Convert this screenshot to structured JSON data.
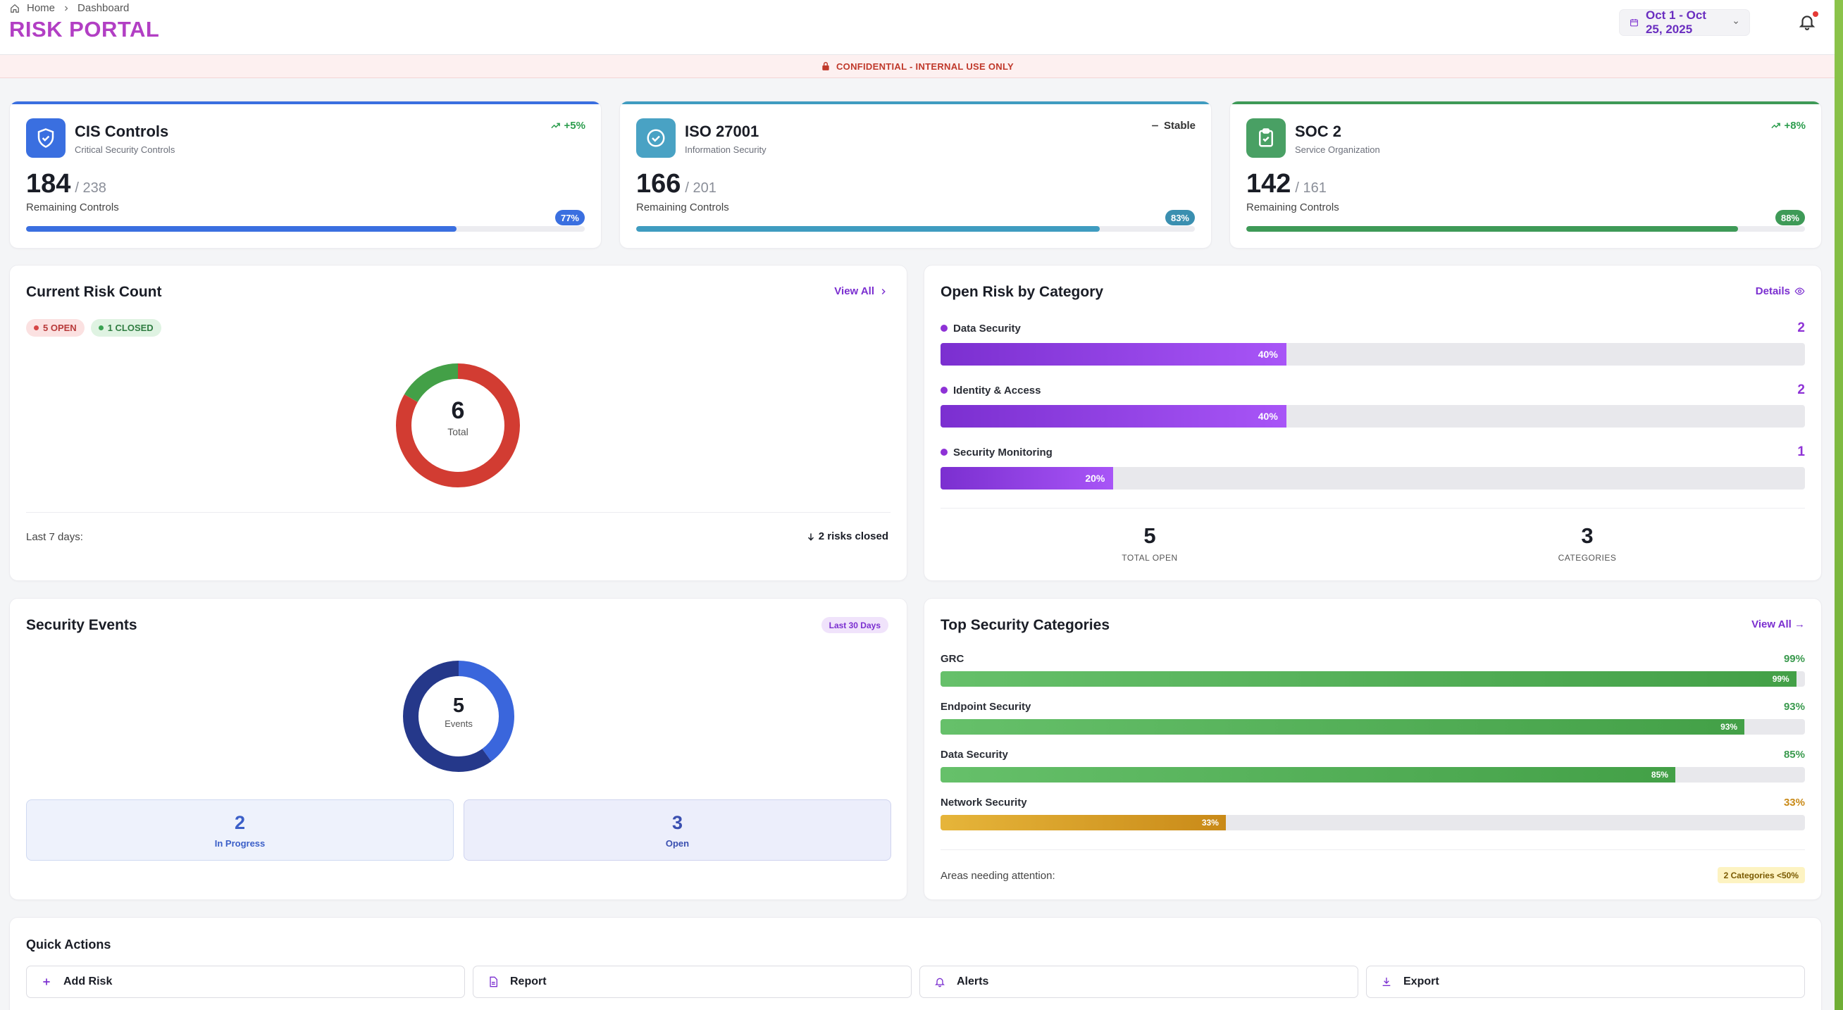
{
  "header": {
    "breadcrumb": [
      "Home",
      "Dashboard"
    ],
    "title": "RISK PORTAL",
    "date_range": "Oct 1 - Oct 25, 2025",
    "banner": "CONFIDENTIAL - INTERNAL USE ONLY"
  },
  "frameworks": [
    {
      "name": "CIS Controls",
      "sub": "Critical Security Controls",
      "trend": "+5%",
      "count": "184",
      "total": "/ 238",
      "label": "Remaining Controls",
      "percent_label": "77%",
      "percent": 77,
      "color": "#3a6fe0",
      "icon": "shield-icon"
    },
    {
      "name": "ISO 27001",
      "sub": "Information Security",
      "trend": "Stable",
      "count": "166",
      "total": "/ 201",
      "label": "Remaining Controls",
      "percent_label": "83%",
      "percent": 83,
      "color": "#3f9cc0",
      "icon": "check-circle-icon"
    },
    {
      "name": "SOC 2",
      "sub": "Service Organization",
      "trend": "+8%",
      "count": "142",
      "total": "/ 161",
      "label": "Remaining Controls",
      "percent_label": "88%",
      "percent": 88,
      "color": "#3e9a57",
      "icon": "clipboard-check-icon"
    }
  ],
  "risk_count": {
    "title": "Current Risk Count",
    "view_all": "View All",
    "open_pill": "5 OPEN",
    "closed_pill": "1 CLOSED",
    "open": 5,
    "closed": 1,
    "total": "6",
    "total_label": "Total",
    "footer_label": "Last 7 days:",
    "footer_value": "2 risks closed"
  },
  "open_by_category": {
    "title": "Open Risk by Category",
    "details": "Details",
    "items": [
      {
        "name": "Data Security",
        "count": "2",
        "percent_label": "40%",
        "percent": 40
      },
      {
        "name": "Identity & Access",
        "count": "2",
        "percent_label": "40%",
        "percent": 40
      },
      {
        "name": "Security Monitoring",
        "count": "1",
        "percent_label": "20%",
        "percent": 20
      }
    ],
    "total_open": "5",
    "total_open_label": "TOTAL OPEN",
    "categories": "3",
    "categories_label": "CATEGORIES"
  },
  "security_events": {
    "title": "Security Events",
    "period": "Last 30 Days",
    "total": "5",
    "total_label": "Events",
    "in_progress": 2,
    "open": 3,
    "in_progress_value": "2",
    "in_progress_label": "In Progress",
    "open_value": "3",
    "open_label": "Open"
  },
  "top_categories": {
    "title": "Top Security Categories",
    "view_all": "View All →",
    "items": [
      {
        "name": "GRC",
        "percent_label": "99%",
        "percent": 99,
        "color": "#4caf50"
      },
      {
        "name": "Endpoint Security",
        "percent_label": "93%",
        "percent": 93,
        "color": "#4caf50"
      },
      {
        "name": "Data Security",
        "percent_label": "85%",
        "percent": 85,
        "color": "#4caf50"
      },
      {
        "name": "Network Security",
        "percent_label": "33%",
        "percent": 33,
        "color": "#d9a02b"
      }
    ],
    "footer_label": "Areas needing attention:",
    "footer_badge": "2 Categories <50%"
  },
  "quick_actions": {
    "title": "Quick Actions",
    "buttons": [
      {
        "label": "Add Risk",
        "icon": "plus-icon"
      },
      {
        "label": "Report",
        "icon": "document-icon"
      },
      {
        "label": "Alerts",
        "icon": "bell-icon"
      },
      {
        "label": "Export",
        "icon": "download-icon"
      }
    ]
  }
}
